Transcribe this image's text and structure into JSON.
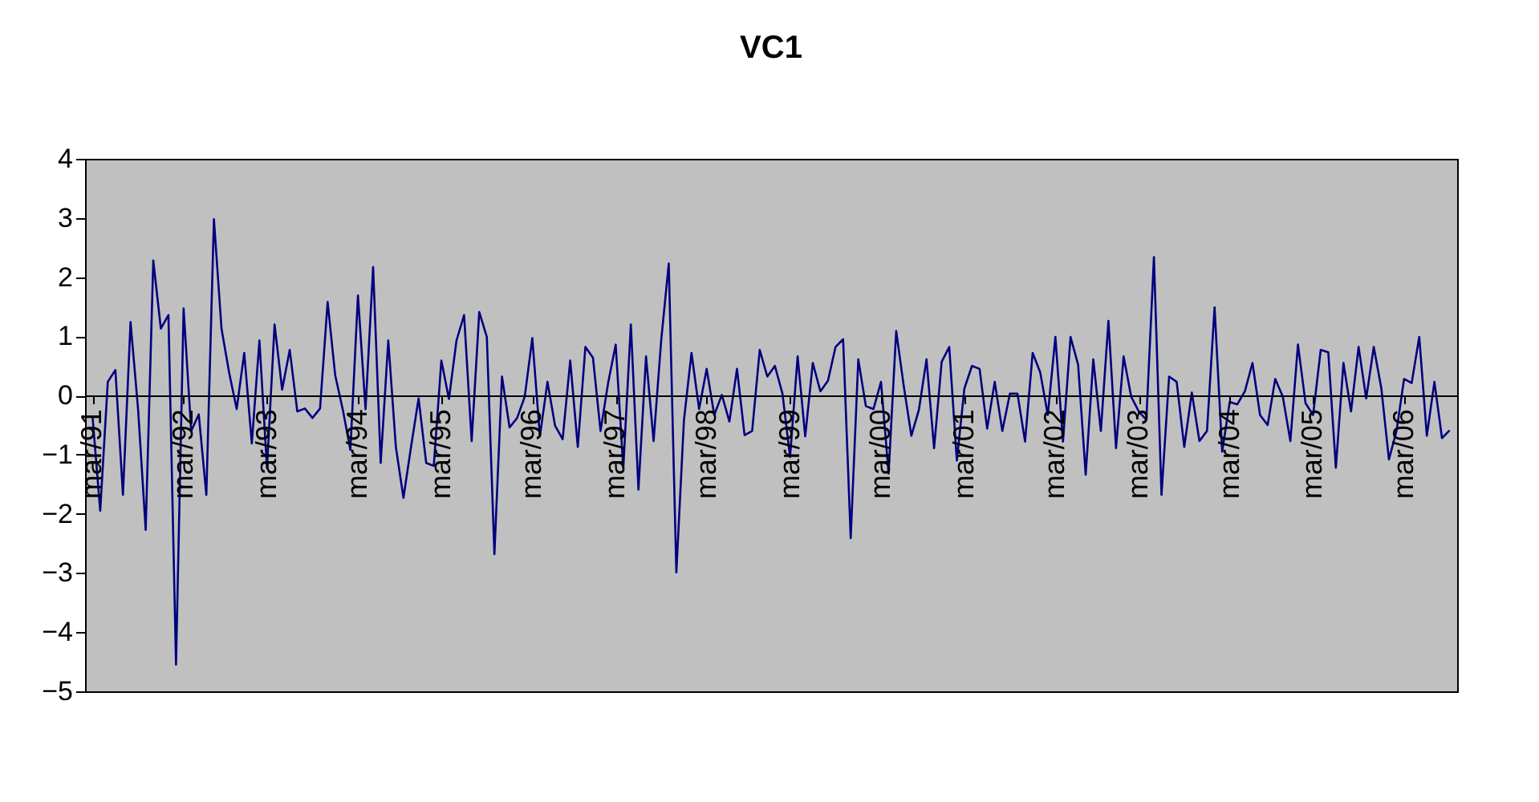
{
  "chart_data": {
    "type": "line",
    "title": "VC1",
    "categories": [
      "mar/91",
      null,
      null,
      null,
      null,
      null,
      null,
      null,
      null,
      null,
      null,
      null,
      "mar/92",
      null,
      null,
      null,
      null,
      null,
      null,
      null,
      null,
      null,
      null,
      "mar/93",
      null,
      null,
      null,
      null,
      null,
      null,
      null,
      null,
      null,
      null,
      null,
      "mar/94",
      null,
      null,
      null,
      null,
      null,
      null,
      null,
      null,
      null,
      null,
      "mar/95",
      null,
      null,
      null,
      null,
      null,
      null,
      null,
      null,
      null,
      null,
      null,
      "mar/96",
      null,
      null,
      null,
      null,
      null,
      null,
      null,
      null,
      null,
      null,
      "mar/97",
      null,
      null,
      null,
      null,
      null,
      null,
      null,
      null,
      null,
      null,
      null,
      "mar/98",
      null,
      null,
      null,
      null,
      null,
      null,
      null,
      null,
      null,
      null,
      "mar/99",
      null,
      null,
      null,
      null,
      null,
      null,
      null,
      null,
      null,
      null,
      null,
      "mar/00",
      null,
      null,
      null,
      null,
      null,
      null,
      null,
      null,
      null,
      null,
      "mar/01",
      null,
      null,
      null,
      null,
      null,
      null,
      null,
      null,
      null,
      null,
      null,
      "mar/02",
      null,
      null,
      null,
      null,
      null,
      null,
      null,
      null,
      null,
      null,
      "mar/03",
      null,
      null,
      null,
      null,
      null,
      null,
      null,
      null,
      null,
      null,
      null,
      "mar/04",
      null,
      null,
      null,
      null,
      null,
      null,
      null,
      null,
      null,
      null,
      "mar/05",
      null,
      null,
      null,
      null,
      null,
      null,
      null,
      null,
      null,
      null,
      null,
      "mar/06",
      null,
      null,
      null,
      null,
      null,
      null
    ],
    "series": [
      {
        "color": "#000080",
        "values": [
          -0.38,
          -1.95,
          0.23,
          0.43,
          -1.68,
          1.24,
          -0.24,
          -2.27,
          2.28,
          1.13,
          1.36,
          -4.55,
          1.47,
          -0.6,
          -0.32,
          -1.68,
          2.98,
          1.13,
          0.39,
          -0.23,
          0.72,
          -0.81,
          0.93,
          -1.23,
          1.2,
          0.1,
          0.77,
          -0.27,
          -0.22,
          -0.38,
          -0.22,
          1.58,
          0.34,
          -0.24,
          -0.92,
          1.69,
          -0.23,
          2.17,
          -1.14,
          0.93,
          -0.87,
          -1.73,
          -0.87,
          -0.05,
          -1.14,
          -1.19,
          0.59,
          -0.06,
          0.93,
          1.36,
          -0.77,
          1.41,
          0.99,
          -2.68,
          0.32,
          -0.54,
          -0.38,
          -0.02,
          0.97,
          -0.69,
          0.23,
          -0.51,
          -0.74,
          0.59,
          -0.87,
          0.82,
          0.64,
          -0.6,
          0.21,
          0.86,
          -1.23,
          1.2,
          -1.59,
          0.66,
          -0.77,
          0.93,
          2.23,
          -2.99,
          -0.42,
          0.72,
          -0.23,
          0.45,
          -0.33,
          0.01,
          -0.44,
          0.45,
          -0.67,
          -0.6,
          0.77,
          0.32,
          0.5,
          0.03,
          -1.04,
          0.66,
          -0.69,
          0.55,
          0.07,
          0.25,
          0.82,
          0.95,
          -2.41,
          0.61,
          -0.18,
          -0.23,
          0.23,
          -1.32,
          1.09,
          0.16,
          -0.68,
          -0.24,
          0.61,
          -0.89,
          0.57,
          0.82,
          -1.1,
          0.12,
          0.5,
          0.45,
          -0.56,
          0.23,
          -0.6,
          0.03,
          0.03,
          -0.78,
          0.72,
          0.39,
          -0.33,
          0.99,
          -0.78,
          0.99,
          0.52,
          -1.34,
          0.61,
          -0.6,
          1.26,
          -0.89,
          0.66,
          -0.02,
          -0.27,
          -0.41,
          2.34,
          -1.68,
          0.32,
          0.23,
          -0.87,
          0.05,
          -0.77,
          -0.6,
          1.49,
          -0.95,
          -0.11,
          -0.15,
          0.07,
          0.55,
          -0.33,
          -0.5,
          0.28,
          -0.02,
          -0.77,
          0.86,
          -0.13,
          -0.33,
          0.77,
          0.73,
          -1.22,
          0.55,
          -0.27,
          0.82,
          -0.05,
          0.82,
          0.12,
          -1.08,
          -0.6,
          0.28,
          0.21,
          0.99,
          -0.68,
          0.23,
          -0.72,
          -0.59
        ]
      }
    ],
    "ylim": [
      -5,
      4
    ],
    "yticks": [
      -5,
      -4,
      -3,
      -2,
      -1,
      0,
      1,
      2,
      3,
      4
    ],
    "grid": false,
    "legend": false,
    "marker": "none",
    "line_style": "solid"
  }
}
